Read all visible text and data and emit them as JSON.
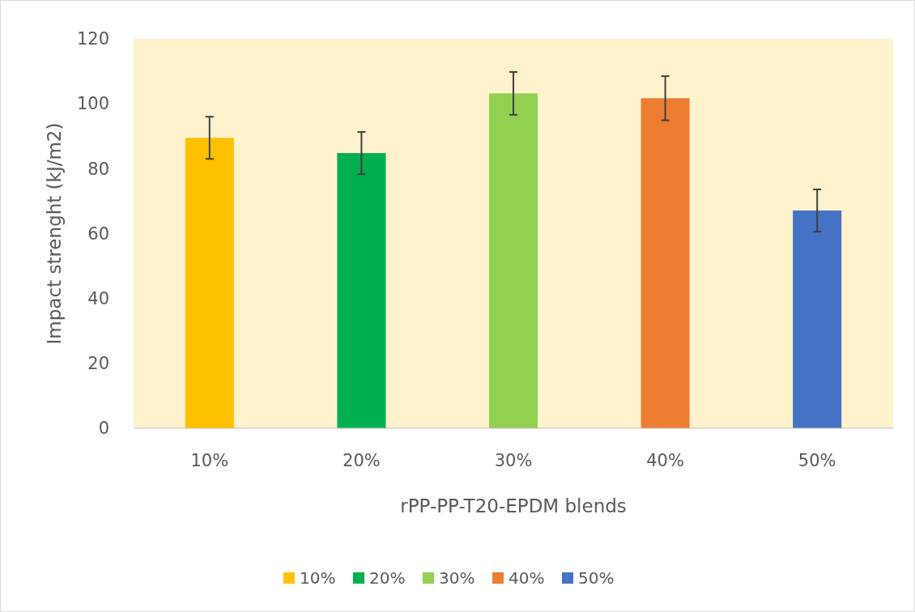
{
  "chart_data": {
    "type": "bar",
    "categories": [
      "10%",
      "20%",
      "30%",
      "40%",
      "50%"
    ],
    "series": [
      {
        "name": "10%",
        "color": "#ffc000",
        "values": [
          89.5,
          null,
          null,
          null,
          null
        ],
        "errors": [
          6.5,
          null,
          null,
          null,
          null
        ]
      },
      {
        "name": "20%",
        "color": "#00b050",
        "values": [
          null,
          84.8,
          null,
          null,
          null
        ],
        "errors": [
          null,
          6.5,
          null,
          null,
          null
        ]
      },
      {
        "name": "30%",
        "color": "#92d050",
        "values": [
          null,
          null,
          103.2,
          null,
          null
        ],
        "errors": [
          null,
          null,
          6.6,
          null,
          null
        ]
      },
      {
        "name": "40%",
        "color": "#ed7d31",
        "values": [
          null,
          null,
          null,
          101.7,
          null
        ],
        "errors": [
          null,
          null,
          null,
          6.8,
          null
        ]
      },
      {
        "name": "50%",
        "color": "#4472c4",
        "values": [
          null,
          null,
          null,
          null,
          67.1
        ],
        "errors": [
          null,
          null,
          null,
          null,
          6.5
        ]
      }
    ],
    "xlabel": "rPP-PP-T20-EPDM blends",
    "ylabel": "Impact strenght (kJ/m2)",
    "ylim": [
      0,
      120
    ],
    "yticks": [
      0,
      20,
      40,
      60,
      80,
      100,
      120
    ],
    "grid": false,
    "legend": "bottom"
  }
}
